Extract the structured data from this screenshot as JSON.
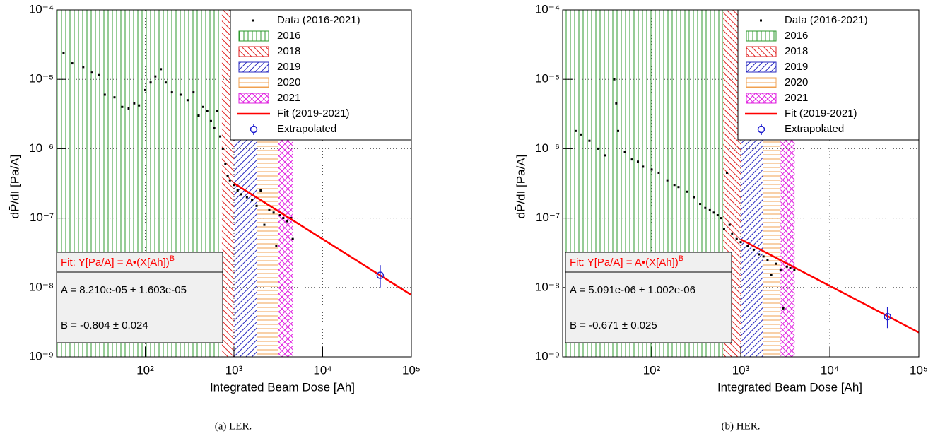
{
  "chart_data": [
    {
      "type": "scatter",
      "caption": "(a) LER.",
      "x_label": "Integrated Beam Dose [Ah]",
      "y_label": "dP̄/dI [Pa/A]",
      "log_x": true,
      "log_y": true,
      "grid": true,
      "legend": "upper right",
      "xlim": [
        10,
        100000
      ],
      "ylim": [
        1e-09,
        0.0001
      ],
      "xticks": [
        {
          "value": 100,
          "label": "10²"
        },
        {
          "value": 1000,
          "label": "10³"
        },
        {
          "value": 10000,
          "label": "10⁴"
        },
        {
          "value": 100000,
          "label": "10⁵"
        }
      ],
      "yticks": [
        {
          "value": 1e-09,
          "label": "10⁻⁹"
        },
        {
          "value": 1e-08,
          "label": "10⁻⁸"
        },
        {
          "value": 1e-07,
          "label": "10⁻⁷"
        },
        {
          "value": 1e-06,
          "label": "10⁻⁶"
        },
        {
          "value": 1e-05,
          "label": "10⁻⁵"
        },
        {
          "value": 0.0001,
          "label": "10⁻⁴"
        }
      ],
      "series": [
        {
          "name": "Data (2016-2021)",
          "color": "#000000",
          "x": [
            12,
            15,
            20,
            25,
            30,
            35,
            45,
            55,
            65,
            75,
            85,
            100,
            115,
            130,
            150,
            170,
            200,
            250,
            300,
            350,
            400,
            450,
            500,
            550,
            600,
            650,
            700,
            750,
            800,
            850,
            900,
            1000,
            1100,
            1200,
            1400,
            1600,
            1800,
            2000,
            2200,
            2500,
            2800,
            3000,
            3300,
            3600,
            4000,
            4400,
            4600
          ],
          "values": [
            2.4e-05,
            1.7e-05,
            1.5e-05,
            1.25e-05,
            1.15e-05,
            6e-06,
            5.5e-06,
            4e-06,
            3.8e-06,
            4.5e-06,
            4.2e-06,
            7e-06,
            9e-06,
            1.1e-05,
            1.4e-05,
            9e-06,
            6.5e-06,
            6e-06,
            5e-06,
            6.5e-06,
            3e-06,
            4e-06,
            3.5e-06,
            2.5e-06,
            2e-06,
            3.5e-06,
            1.5e-06,
            1e-06,
            6e-07,
            4e-07,
            3.5e-07,
            3e-07,
            2.5e-07,
            2.2e-07,
            2e-07,
            1.8e-07,
            1.5e-07,
            2.5e-07,
            8e-08,
            1.3e-07,
            1.2e-07,
            4e-08,
            1.1e-07,
            1e-07,
            9e-08,
            1e-07,
            5e-08
          ]
        }
      ],
      "regions": [
        {
          "name": "2016",
          "color": "#2e9a2e",
          "hatch": "vertical",
          "range": [
            10,
            731
          ]
        },
        {
          "name": "2018",
          "color": "#e02020",
          "hatch": "backslash",
          "range": [
            731,
            1000
          ]
        },
        {
          "name": "2019",
          "color": "#2828c0",
          "hatch": "slash",
          "range": [
            1000,
            1800
          ]
        },
        {
          "name": "2020",
          "color": "#f0a050",
          "hatch": "horizontal",
          "range": [
            1800,
            3130
          ]
        },
        {
          "name": "2021",
          "color": "#e020e0",
          "hatch": "cross",
          "range": [
            3130,
            4620
          ]
        }
      ],
      "fit": {
        "name": "Fit (2019-2021)",
        "color": "#ff0000",
        "x": [
          1000,
          100000
        ],
        "values": [
          3.18e-07,
          7.8e-09
        ]
      },
      "extrapolated": {
        "name": "Extrapolated",
        "color": "#2020d0",
        "x": 44500,
        "value": 1.5e-08,
        "low": 1e-08,
        "high": 2.1e-08
      },
      "fit_box": {
        "title": "Fit: Y[Pa/A] = A•(X[Ah])",
        "title_exponent": "B",
        "lines": [
          "A = 8.210e-05 ± 1.603e-05",
          "B = -0.804 ± 0.024"
        ]
      }
    },
    {
      "type": "scatter",
      "caption": "(b) HER.",
      "x_label": "Integrated Beam Dose [Ah]",
      "y_label": "dP̄/dI [Pa/A]",
      "log_x": true,
      "log_y": true,
      "grid": true,
      "legend": "upper right",
      "xlim": [
        10,
        100000
      ],
      "ylim": [
        1e-09,
        0.0001
      ],
      "xticks": [
        {
          "value": 100,
          "label": "10²"
        },
        {
          "value": 1000,
          "label": "10³"
        },
        {
          "value": 10000,
          "label": "10⁴"
        },
        {
          "value": 100000,
          "label": "10⁵"
        }
      ],
      "yticks": [
        {
          "value": 1e-09,
          "label": "10⁻⁹"
        },
        {
          "value": 1e-08,
          "label": "10⁻⁸"
        },
        {
          "value": 1e-07,
          "label": "10⁻⁷"
        },
        {
          "value": 1e-06,
          "label": "10⁻⁶"
        },
        {
          "value": 1e-05,
          "label": "10⁻⁵"
        },
        {
          "value": 0.0001,
          "label": "10⁻⁴"
        }
      ],
      "series": [
        {
          "name": "Data (2016-2021)",
          "color": "#000000",
          "x": [
            14,
            16,
            20,
            25,
            30,
            38,
            40,
            42,
            50,
            60,
            70,
            80,
            100,
            120,
            150,
            180,
            200,
            250,
            300,
            350,
            400,
            450,
            500,
            550,
            600,
            650,
            700,
            750,
            800,
            900,
            1000,
            1200,
            1400,
            1600,
            1800,
            2000,
            2200,
            2500,
            2800,
            3000,
            3300,
            3600,
            4000
          ],
          "values": [
            1.8e-06,
            1.6e-06,
            1.3e-06,
            1e-06,
            8e-07,
            1e-05,
            4.5e-06,
            1.8e-06,
            9e-07,
            7e-07,
            6.5e-07,
            5.5e-07,
            5e-07,
            4.5e-07,
            3.5e-07,
            3e-07,
            2.8e-07,
            2.4e-07,
            2e-07,
            1.6e-07,
            1.4e-07,
            1.3e-07,
            1.2e-07,
            1.1e-07,
            1e-07,
            7e-08,
            4.5e-07,
            8e-08,
            6e-08,
            5e-08,
            4.5e-08,
            4e-08,
            3.5e-08,
            3e-08,
            2.8e-08,
            2.5e-08,
            1.5e-08,
            2.2e-08,
            1.8e-08,
            5e-09,
            2e-08,
            1.9e-08,
            1.8e-08
          ]
        }
      ],
      "regions": [
        {
          "name": "2016",
          "color": "#2e9a2e",
          "hatch": "vertical",
          "range": [
            10,
            635
          ]
        },
        {
          "name": "2018",
          "color": "#e02020",
          "hatch": "backslash",
          "range": [
            635,
            1000
          ]
        },
        {
          "name": "2019",
          "color": "#2828c0",
          "hatch": "slash",
          "range": [
            1000,
            1790
          ]
        },
        {
          "name": "2020",
          "color": "#f0a050",
          "hatch": "horizontal",
          "range": [
            1790,
            2800
          ]
        },
        {
          "name": "2021",
          "color": "#e020e0",
          "hatch": "cross",
          "range": [
            2800,
            4040
          ]
        }
      ],
      "fit": {
        "name": "Fit (2019-2021)",
        "color": "#ff0000",
        "x": [
          1000,
          100000
        ],
        "values": [
          4.94e-08,
          2.25e-09
        ]
      },
      "extrapolated": {
        "name": "Extrapolated",
        "color": "#2020d0",
        "x": 44500,
        "value": 3.8e-09,
        "low": 2.6e-09,
        "high": 5.2e-09
      },
      "fit_box": {
        "title": "Fit: Y[Pa/A] = A•(X[Ah])",
        "title_exponent": "B",
        "lines": [
          "A = 5.091e-06 ± 1.002e-06",
          "B = -0.671 ± 0.025"
        ]
      }
    }
  ]
}
